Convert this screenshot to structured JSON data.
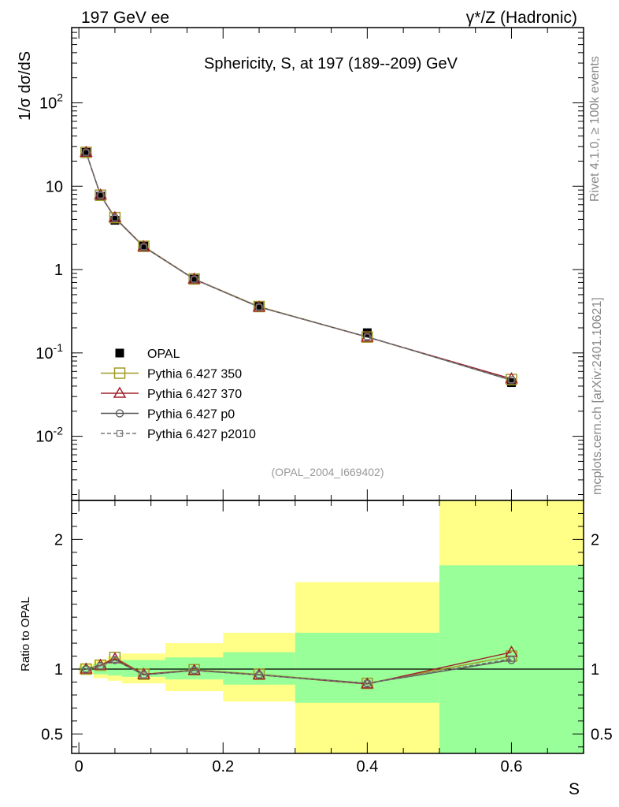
{
  "header": {
    "left": "197 GeV ee",
    "right": "γ*/Z (Hadronic)"
  },
  "side_labels": {
    "rivet": "Rivet 4.1.0, ≥ 100k events",
    "mcplots": "mcplots.cern.ch [arXiv:2401.10621]"
  },
  "colors": {
    "data": "#000000",
    "p350": "#a09a26",
    "p370": "#a0202a",
    "p0": "#555555",
    "p2010": "#777777",
    "band_inner": "#99ff99",
    "band_outer": "#ffff88"
  },
  "chart_data": [
    {
      "type": "line",
      "title": "Sphericity, S, at 197 (189--209) GeV",
      "ylabel_main": "1/σ  dσ/dS",
      "yscale": "log",
      "ylim": [
        0.0017,
        800
      ],
      "xlim": [
        -0.01,
        0.7
      ],
      "ytick_labels": [
        "10^-2",
        "10^-1",
        "1",
        "10",
        "10^2"
      ],
      "annotation": "(OPAL_2004_I669402)",
      "x": [
        0.01,
        0.03,
        0.05,
        0.09,
        0.16,
        0.25,
        0.4,
        0.6
      ],
      "series": [
        {
          "name": "OPAL",
          "marker": "filled-square",
          "values": [
            25.5,
            7.6,
            3.9,
            1.95,
            0.77,
            0.37,
            0.175,
            0.044
          ]
        },
        {
          "name": "Pythia 6.427 350",
          "marker": "open-square",
          "values": [
            25.5,
            7.8,
            4.2,
            1.9,
            0.77,
            0.36,
            0.155,
            0.048
          ]
        },
        {
          "name": "Pythia 6.427 370",
          "marker": "open-triangle",
          "values": [
            25.5,
            7.85,
            4.2,
            1.88,
            0.77,
            0.355,
            0.155,
            0.049
          ]
        },
        {
          "name": "Pythia 6.427 p0",
          "marker": "open-circle",
          "values": [
            25.4,
            7.8,
            4.15,
            1.87,
            0.765,
            0.355,
            0.156,
            0.047
          ]
        },
        {
          "name": "Pythia 6.427 p2010",
          "marker": "small-open-square",
          "values": [
            25.4,
            7.8,
            4.15,
            1.87,
            0.765,
            0.355,
            0.156,
            0.0475
          ]
        }
      ]
    },
    {
      "type": "line",
      "ylabel": "Ratio to OPAL",
      "xlabel": "S",
      "ylim": [
        0.35,
        2.3
      ],
      "xlim": [
        -0.01,
        0.7
      ],
      "ytick_labels": [
        "0.5",
        "1",
        "2"
      ],
      "xtick_labels": [
        "0",
        "0.2",
        "0.4",
        "0.6"
      ],
      "reference_line": 1.0,
      "bands": {
        "bins": [
          {
            "xlo": 0.0,
            "xhi": 0.02,
            "inner": [
              0.98,
              1.02
            ],
            "outer": [
              0.96,
              1.04
            ]
          },
          {
            "xlo": 0.02,
            "xhi": 0.04,
            "inner": [
              0.96,
              1.04
            ],
            "outer": [
              0.93,
              1.07
            ]
          },
          {
            "xlo": 0.04,
            "xhi": 0.06,
            "inner": [
              0.95,
              1.06
            ],
            "outer": [
              0.91,
              1.1
            ]
          },
          {
            "xlo": 0.06,
            "xhi": 0.12,
            "inner": [
              0.94,
              1.07
            ],
            "outer": [
              0.89,
              1.12
            ]
          },
          {
            "xlo": 0.12,
            "xhi": 0.2,
            "inner": [
              0.92,
              1.09
            ],
            "outer": [
              0.83,
              1.2
            ]
          },
          {
            "xlo": 0.2,
            "xhi": 0.3,
            "inner": [
              0.88,
              1.13
            ],
            "outer": [
              0.75,
              1.28
            ]
          },
          {
            "xlo": 0.3,
            "xhi": 0.5,
            "inner": [
              0.74,
              1.28
            ],
            "outer": [
              0.35,
              1.67
            ]
          },
          {
            "xlo": 0.5,
            "xhi": 0.7,
            "inner": [
              0.35,
              1.8
            ],
            "outer": [
              0.35,
              2.3
            ]
          }
        ]
      },
      "x": [
        0.01,
        0.03,
        0.05,
        0.09,
        0.16,
        0.25,
        0.4,
        0.6
      ],
      "series": [
        {
          "name": "Pythia 6.427 350",
          "values": [
            1.0,
            1.03,
            1.09,
            0.96,
            0.995,
            0.96,
            0.89,
            1.1
          ]
        },
        {
          "name": "Pythia 6.427 370",
          "values": [
            1.0,
            1.03,
            1.08,
            0.96,
            0.99,
            0.955,
            0.885,
            1.13
          ]
        },
        {
          "name": "Pythia 6.427 p0",
          "values": [
            1.0,
            1.025,
            1.07,
            0.955,
            0.99,
            0.955,
            0.89,
            1.07
          ]
        },
        {
          "name": "Pythia 6.427 p2010",
          "values": [
            1.0,
            1.025,
            1.07,
            0.955,
            0.99,
            0.955,
            0.89,
            1.08
          ]
        }
      ]
    }
  ]
}
